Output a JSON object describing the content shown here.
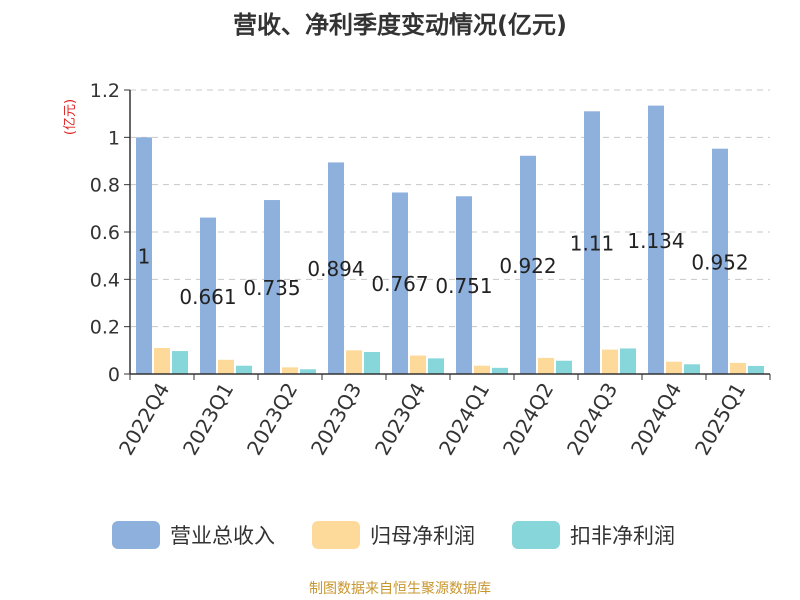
{
  "chart_data": {
    "type": "bar",
    "title": "营收、净利季度变动情况(亿元)",
    "ylabel": "(亿元)",
    "categories": [
      "2022Q4",
      "2023Q1",
      "2023Q2",
      "2023Q3",
      "2023Q4",
      "2024Q1",
      "2024Q2",
      "2024Q3",
      "2024Q4",
      "2025Q1"
    ],
    "yticks": [
      "0",
      "0.2",
      "0.4",
      "0.6",
      "0.8",
      "1",
      "1.2"
    ],
    "ylim": [
      0,
      1.2
    ],
    "grid": true,
    "legend_position": "bottom",
    "series": [
      {
        "name": "营业总收入",
        "color": "#8eb0dc",
        "values": [
          1.0,
          0.661,
          0.735,
          0.894,
          0.767,
          0.751,
          0.922,
          1.11,
          1.134,
          0.952
        ],
        "labels": [
          "1",
          "0.661",
          "0.735",
          "0.894",
          "0.767",
          "0.751",
          "0.922",
          "1.11",
          "1.134",
          "0.952"
        ]
      },
      {
        "name": "归母净利润",
        "color": "#fdd99a",
        "values": [
          0.11,
          0.06,
          0.028,
          0.1,
          0.078,
          0.035,
          0.068,
          0.103,
          0.052,
          0.047
        ]
      },
      {
        "name": "扣非净利润",
        "color": "#87d6d9",
        "values": [
          0.097,
          0.035,
          0.02,
          0.093,
          0.066,
          0.026,
          0.056,
          0.108,
          0.041,
          0.034
        ]
      }
    ]
  },
  "footer": "制图数据来自恒生聚源数据库"
}
